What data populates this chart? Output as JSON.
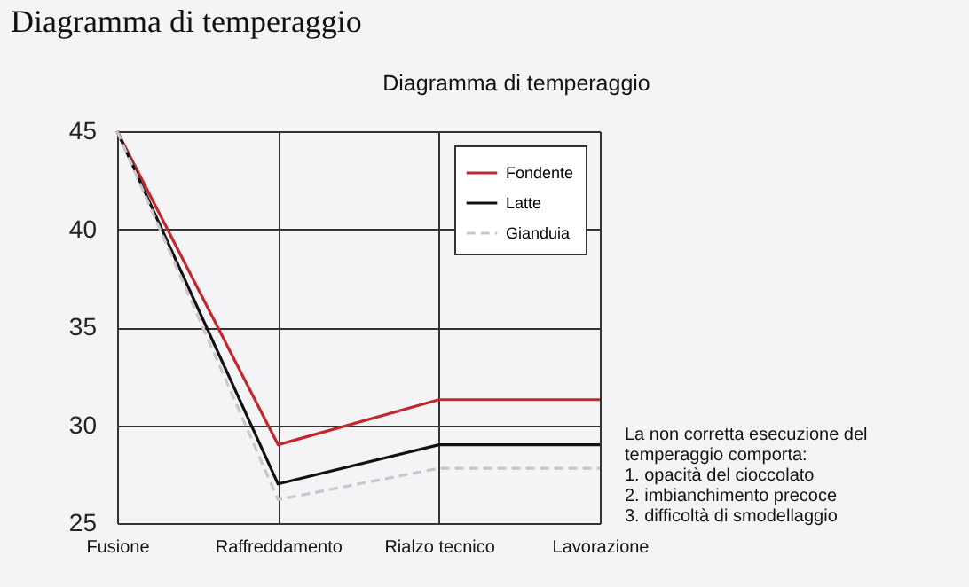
{
  "chart_data": {
    "type": "line",
    "title": "Diagramma di temperaggio",
    "subtitle": "Diagramma di temperaggio",
    "categories": [
      "Fusione",
      "Raffreddamento",
      "Rialzo tecnico",
      "Lavorazione"
    ],
    "series": [
      {
        "name": "Fondente",
        "color": "#c0282d",
        "values": [
          45,
          29,
          31.3,
          31.3
        ],
        "line_style": "solid"
      },
      {
        "name": "Latte",
        "color": "#111111",
        "values": [
          45,
          27,
          29,
          29
        ],
        "line_style": "solid"
      },
      {
        "name": "Gianduia",
        "color": "#cfc4cc",
        "values": [
          45,
          26.2,
          27.8,
          27.8
        ],
        "line_style": "dashed"
      }
    ],
    "ylim": [
      25,
      45
    ],
    "yticks": [
      25,
      30,
      35,
      40,
      45
    ],
    "grid": true,
    "legend": "top right",
    "marker": "none",
    "annotations": [
      "La non corretta esecuzione del\ntemperaggio comporta:\n1. opacità del cioccolato\n2. imbianchimento precoce\n3. difficoltà di smodellaggio"
    ]
  }
}
